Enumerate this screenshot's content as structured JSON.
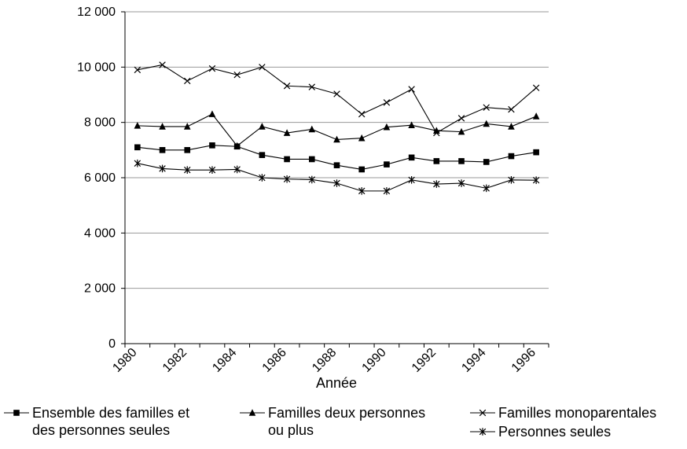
{
  "chart_data": {
    "type": "line",
    "x_label": "Année",
    "categories": [
      "1980",
      null,
      "1982",
      null,
      "1984",
      null,
      "1986",
      null,
      "1988",
      null,
      "1990",
      null,
      "1992",
      null,
      "1994",
      null,
      "1996"
    ],
    "series": [
      {
        "name": "Ensemble des familles et des personnes seules",
        "color": "#000000",
        "marker": "square",
        "values": [
          7100,
          7000,
          7000,
          7170,
          7130,
          6820,
          6670,
          6670,
          6450,
          6300,
          6480,
          6730,
          6600,
          6600,
          6570,
          6780,
          6920
        ]
      },
      {
        "name": "Familles deux personnes ou plus",
        "color": "#000000",
        "marker": "triangle",
        "values": [
          7880,
          7850,
          7850,
          8300,
          7150,
          7850,
          7620,
          7750,
          7380,
          7430,
          7830,
          7900,
          7700,
          7660,
          7950,
          7850,
          8220
        ]
      },
      {
        "name": "Familles monoparentales",
        "color": "#000000",
        "marker": "x",
        "values": [
          9900,
          10080,
          9500,
          9950,
          9720,
          10000,
          9320,
          9280,
          9030,
          8300,
          8720,
          9200,
          7620,
          8150,
          8540,
          8470,
          9250
        ]
      },
      {
        "name": "Personnes seules",
        "color": "#000000",
        "marker": "asterisk",
        "values": [
          6520,
          6330,
          6280,
          6280,
          6300,
          6000,
          5950,
          5930,
          5800,
          5520,
          5520,
          5920,
          5770,
          5800,
          5620,
          5920,
          5910
        ]
      }
    ],
    "ylim": [
      0,
      12000
    ],
    "yticks": [
      {
        "value": 0,
        "label": "0"
      },
      {
        "value": 2000,
        "label": "2 000"
      },
      {
        "value": 4000,
        "label": "4 000"
      },
      {
        "value": 6000,
        "label": "6 000"
      },
      {
        "value": 8000,
        "label": "8 000"
      },
      {
        "value": 10000,
        "label": "10 000"
      },
      {
        "value": 12000,
        "label": "12 000"
      }
    ],
    "grid": true
  }
}
